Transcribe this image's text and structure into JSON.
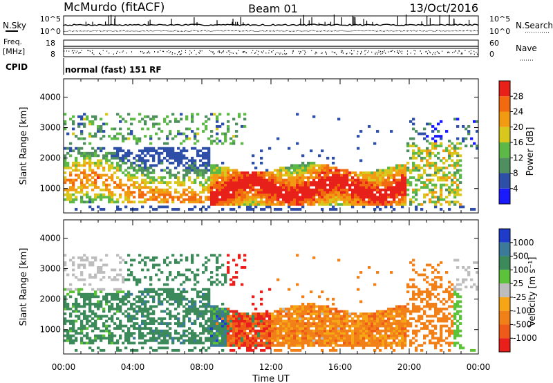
{
  "header": {
    "station": "McMurdo (fitACF)",
    "beam": "Beam 01",
    "date": "13/Oct/2016"
  },
  "strip_labels": {
    "nsky": "N.Sky",
    "nsearch": "N.Search",
    "freq_line1": "Freq.",
    "freq_line2": "[MHz]",
    "nave": "Nave",
    "cpid": "CPID",
    "cpid_value": "normal (fast) 151 RF"
  },
  "noise_axis_labels": [
    "10^5",
    "10^0"
  ],
  "freq_axis_labels": [
    "18",
    "8"
  ],
  "nave_axis_labels": [
    "60",
    "0"
  ],
  "colors": {
    "power_scale": [
      "#1a1aff",
      "#2e4fa8",
      "#4f8f5f",
      "#5db848",
      "#d8c81e",
      "#f29a12",
      "#f26a10",
      "#e8201a"
    ],
    "velocity_scale": [
      "#1e3cc8",
      "#3b7a99",
      "#3c8a5a",
      "#5cc23a",
      "#bdbdbd",
      "#f5a515",
      "#f28018",
      "#ee5a18",
      "#e81f1a"
    ]
  },
  "chart_data": [
    {
      "type": "heatmap",
      "title": "",
      "xlabel": "Time UT",
      "ylabel": "Slant Range [km]",
      "x_ticks": [
        "00:00",
        "04:00",
        "08:00",
        "12:00",
        "16:00",
        "20:00",
        "00:00"
      ],
      "y_ticks": [
        1000,
        2000,
        3000,
        4000
      ],
      "xlim_hours": [
        0,
        24
      ],
      "ylim": [
        200,
        4600
      ],
      "colorbar_label": "Power [dB]",
      "colorbar_ticks": [
        "4",
        "8",
        "12",
        "16",
        "20",
        "24",
        "28"
      ],
      "colorbar_range": [
        0,
        32
      ]
    },
    {
      "type": "heatmap",
      "title": "",
      "xlabel": "Time UT",
      "ylabel": "Slant Range [km]",
      "x_ticks": [
        "00:00",
        "04:00",
        "08:00",
        "12:00",
        "16:00",
        "20:00",
        "00:00"
      ],
      "y_ticks": [
        1000,
        2000,
        3000,
        4000
      ],
      "xlim_hours": [
        0,
        24
      ],
      "ylim": [
        200,
        4600
      ],
      "colorbar_label": "Velocity [m s⁻¹]",
      "colorbar_ticks": [
        "1000",
        "500",
        "100",
        "25",
        "-25",
        "-100",
        "-500",
        "-1000"
      ]
    }
  ]
}
